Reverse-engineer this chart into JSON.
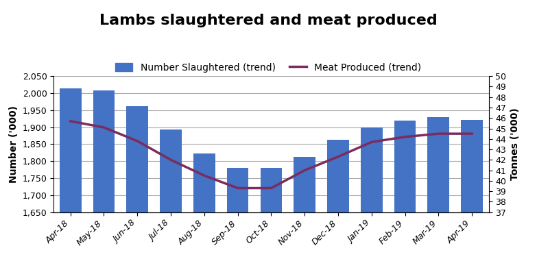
{
  "title": "Lambs slaughtered and meat produced",
  "categories": [
    "Apr-18",
    "May-18",
    "Jun-18",
    "Jul-18",
    "Aug-18",
    "Sep-18",
    "Oct-18",
    "Nov-18",
    "Dec-18",
    "Jan-19",
    "Feb-19",
    "Mar-19",
    "Apr-19"
  ],
  "bar_values": [
    2015,
    2007,
    1962,
    1893,
    1823,
    1780,
    1780,
    1813,
    1863,
    1900,
    1920,
    1930,
    1922
  ],
  "line_values": [
    45.7,
    45.1,
    43.8,
    42.0,
    40.5,
    39.3,
    39.3,
    41.0,
    42.3,
    43.7,
    44.2,
    44.5,
    44.5
  ],
  "bar_color": "#4472C4",
  "line_color": "#7B2C5E",
  "ylabel_left": "Number ('000)",
  "ylabel_right": "Tonnes ('000)",
  "legend_bar": "Number Slaughtered (trend)",
  "legend_line": "Meat Produced (trend)",
  "ylim_left": [
    1650,
    2050
  ],
  "ylim_right": [
    37,
    50
  ],
  "yticks_left": [
    1650,
    1700,
    1750,
    1800,
    1850,
    1900,
    1950,
    2000,
    2050
  ],
  "yticks_right": [
    37,
    38,
    39,
    40,
    41,
    42,
    43,
    44,
    45,
    46,
    47,
    48,
    49,
    50
  ],
  "title_fontsize": 16,
  "label_fontsize": 10,
  "tick_fontsize": 9,
  "legend_fontsize": 10,
  "background_color": "#ffffff",
  "grid_color": "#aaaaaa"
}
